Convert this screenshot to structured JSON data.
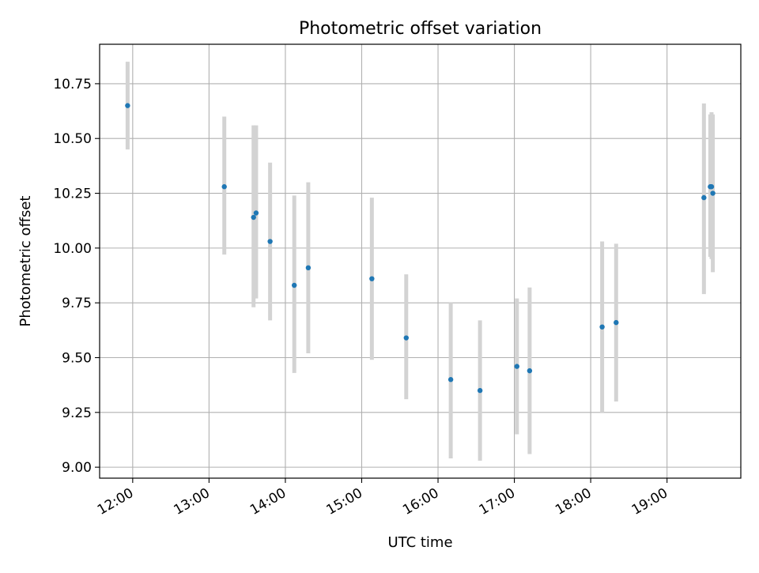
{
  "chart_data": {
    "type": "scatter",
    "title": "Photometric offset variation",
    "xlabel": "UTC time",
    "ylabel": "Photometric offset",
    "x_tick_labels": [
      "12:00",
      "13:00",
      "14:00",
      "15:00",
      "16:00",
      "17:00",
      "18:00",
      "19:00"
    ],
    "y_tick_labels": [
      "9.00",
      "9.25",
      "9.50",
      "9.75",
      "10.00",
      "10.25",
      "10.50",
      "10.75"
    ],
    "x_ticks": [
      "12:00",
      "13:00",
      "14:00",
      "15:00",
      "16:00",
      "17:00",
      "18:00",
      "19:00"
    ],
    "y_ticks": [
      9.0,
      9.25,
      9.5,
      9.75,
      10.0,
      10.25,
      10.5,
      10.75
    ],
    "xlim": [
      "11:34",
      "19:58"
    ],
    "ylim": [
      8.95,
      10.93
    ],
    "grid": true,
    "marker_color": "#1f77b4",
    "errorbar_color": "#d3d3d3",
    "points": [
      {
        "x": "11:56",
        "y": 10.65,
        "ylow": 10.45,
        "yhigh": 10.85
      },
      {
        "x": "13:12",
        "y": 10.28,
        "ylow": 9.97,
        "yhigh": 10.6
      },
      {
        "x": "13:35",
        "y": 10.14,
        "ylow": 9.73,
        "yhigh": 10.56
      },
      {
        "x": "13:37",
        "y": 10.16,
        "ylow": 9.77,
        "yhigh": 10.56
      },
      {
        "x": "13:48",
        "y": 10.03,
        "ylow": 9.67,
        "yhigh": 10.39
      },
      {
        "x": "14:07",
        "y": 9.83,
        "ylow": 9.43,
        "yhigh": 10.24
      },
      {
        "x": "14:18",
        "y": 9.91,
        "ylow": 9.52,
        "yhigh": 10.3
      },
      {
        "x": "15:08",
        "y": 9.86,
        "ylow": 9.49,
        "yhigh": 10.23
      },
      {
        "x": "15:35",
        "y": 9.59,
        "ylow": 9.31,
        "yhigh": 9.88
      },
      {
        "x": "16:10",
        "y": 9.4,
        "ylow": 9.04,
        "yhigh": 9.75
      },
      {
        "x": "16:33",
        "y": 9.35,
        "ylow": 9.03,
        "yhigh": 9.67
      },
      {
        "x": "17:02",
        "y": 9.46,
        "ylow": 9.15,
        "yhigh": 9.77
      },
      {
        "x": "17:12",
        "y": 9.44,
        "ylow": 9.06,
        "yhigh": 9.82
      },
      {
        "x": "18:09",
        "y": 9.64,
        "ylow": 9.25,
        "yhigh": 10.03
      },
      {
        "x": "18:20",
        "y": 9.66,
        "ylow": 9.3,
        "yhigh": 10.02
      },
      {
        "x": "19:29",
        "y": 10.23,
        "ylow": 9.79,
        "yhigh": 10.66
      },
      {
        "x": "19:34",
        "y": 10.28,
        "ylow": 9.96,
        "yhigh": 10.61
      },
      {
        "x": "19:35",
        "y": 10.28,
        "ylow": 9.95,
        "yhigh": 10.62
      },
      {
        "x": "19:36",
        "y": 10.25,
        "ylow": 9.89,
        "yhigh": 10.61
      }
    ]
  }
}
